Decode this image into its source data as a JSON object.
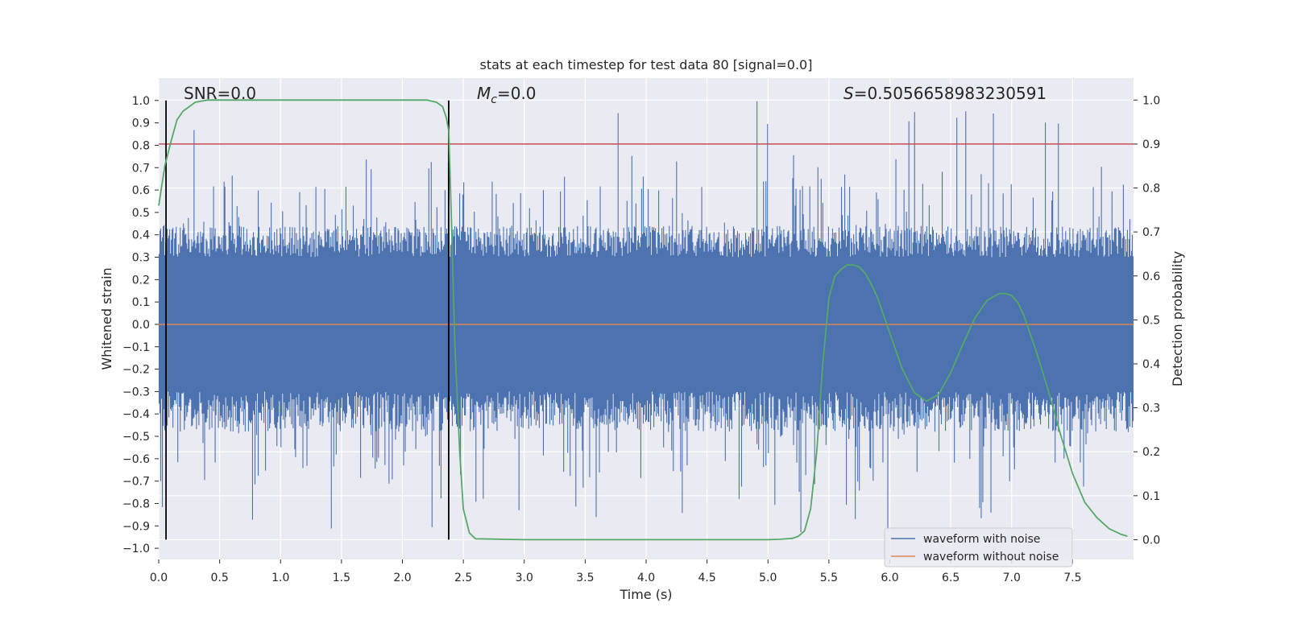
{
  "chart_data": {
    "type": "line",
    "title": "stats at each timestep for test data 80 [signal=0.0]",
    "xlabel": "Time (s)",
    "ylabel": "Whitened strain",
    "ylabel_right": "Detection probability",
    "xlim": [
      0.0,
      8.0
    ],
    "ylim": [
      -1.05,
      1.1
    ],
    "ylim_right": [
      -0.045,
      1.05
    ],
    "x_ticks": [
      "0.0",
      "0.5",
      "1.0",
      "1.5",
      "2.0",
      "2.5",
      "3.0",
      "3.5",
      "4.0",
      "4.5",
      "5.0",
      "5.5",
      "6.0",
      "6.5",
      "7.0",
      "7.5"
    ],
    "y_ticks": [
      "1.0",
      "0.9",
      "0.8",
      "0.7",
      "0.6",
      "0.5",
      "0.4",
      "0.3",
      "0.2",
      "0.1",
      "0.0",
      "−0.1",
      "−0.2",
      "−0.3",
      "−0.4",
      "−0.5",
      "−0.6",
      "−0.7",
      "−0.8",
      "−0.9",
      "−1.0"
    ],
    "y_ticks_right": [
      "1.0",
      "0.9",
      "0.8",
      "0.7",
      "0.6",
      "0.5",
      "0.4",
      "0.3",
      "0.2",
      "0.1",
      "0.0"
    ],
    "annotations": {
      "snr": "SNR=0.0",
      "mc_symbol": "M",
      "mc_sub": "c",
      "mc_value": "=0.0",
      "s_symbol": "S",
      "s_value": "=0.5056658983230591"
    },
    "threshold_probability": 0.9,
    "vertical_lines_time": [
      0.06,
      2.38
    ],
    "noise_envelope": {
      "typical_amplitude": 0.4,
      "max_positive": 1.0,
      "min_negative": -0.93
    },
    "series": [
      {
        "name": "waveform with noise",
        "color": "#4c72b0",
        "kind": "noise"
      },
      {
        "name": "waveform without noise",
        "color": "#dd8452",
        "kind": "flat",
        "value": 0.0
      },
      {
        "name": "detection probability",
        "color": "#55a868",
        "kind": "probability",
        "axis": "right",
        "x": [
          0.0,
          0.05,
          0.1,
          0.15,
          0.2,
          0.3,
          0.4,
          0.6,
          1.0,
          1.5,
          2.0,
          2.2,
          2.28,
          2.33,
          2.36,
          2.38,
          2.4,
          2.43,
          2.47,
          2.5,
          2.55,
          2.6,
          3.0,
          4.0,
          5.0,
          5.1,
          5.2,
          5.25,
          5.3,
          5.35,
          5.4,
          5.45,
          5.5,
          5.55,
          5.6,
          5.65,
          5.7,
          5.75,
          5.8,
          5.85,
          5.9,
          6.0,
          6.1,
          6.2,
          6.3,
          6.4,
          6.5,
          6.6,
          6.7,
          6.8,
          6.9,
          6.95,
          7.0,
          7.05,
          7.1,
          7.2,
          7.3,
          7.4,
          7.5,
          7.6,
          7.7,
          7.8,
          7.9,
          7.95
        ],
        "y": [
          0.76,
          0.85,
          0.905,
          0.955,
          0.975,
          0.995,
          1.0,
          1.0,
          1.0,
          1.0,
          1.0,
          1.0,
          0.995,
          0.985,
          0.96,
          0.93,
          0.75,
          0.45,
          0.2,
          0.07,
          0.015,
          0.002,
          0.0,
          0.0,
          0.0,
          0.001,
          0.003,
          0.008,
          0.02,
          0.07,
          0.2,
          0.4,
          0.55,
          0.6,
          0.615,
          0.625,
          0.625,
          0.62,
          0.605,
          0.58,
          0.55,
          0.47,
          0.39,
          0.335,
          0.315,
          0.33,
          0.38,
          0.445,
          0.505,
          0.545,
          0.56,
          0.56,
          0.555,
          0.54,
          0.51,
          0.43,
          0.34,
          0.24,
          0.15,
          0.085,
          0.05,
          0.025,
          0.012,
          0.008
        ]
      }
    ],
    "legend": {
      "position": "lower-right",
      "entries": [
        "waveform with noise",
        "waveform without noise"
      ]
    },
    "colors": {
      "background": "#eaeaf2",
      "grid": "#ffffff",
      "threshold": "#c44e52",
      "vlines": "#000000"
    }
  }
}
